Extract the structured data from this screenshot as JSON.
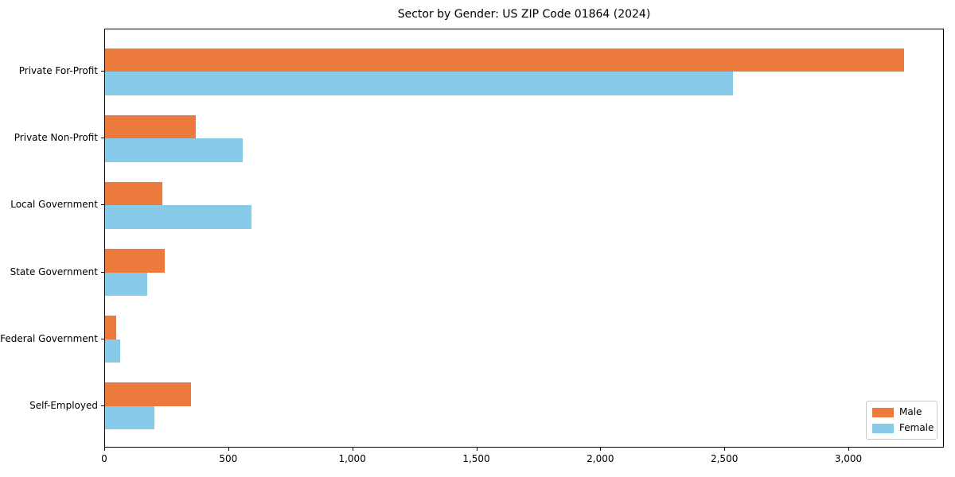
{
  "chart_data": {
    "type": "bar",
    "orientation": "horizontal",
    "title": "Sector by Gender: US ZIP Code 01864 (2024)",
    "categories": [
      "Private For-Profit",
      "Private Non-Profit",
      "Local Government",
      "State Government",
      "Federal Government",
      "Self-Employed"
    ],
    "series": [
      {
        "name": "Male",
        "color": "#EC7A3C",
        "values": [
          3220,
          365,
          230,
          240,
          45,
          345
        ]
      },
      {
        "name": "Female",
        "color": "#87CBE8",
        "values": [
          2530,
          555,
          590,
          170,
          60,
          200
        ]
      }
    ],
    "xlabel": "",
    "ylabel": "",
    "xlim": [
      0,
      3385
    ],
    "x_ticks": [
      0,
      500,
      1000,
      1500,
      2000,
      2500,
      3000
    ],
    "x_tick_labels": [
      "0",
      "500",
      "1,000",
      "1,500",
      "2,000",
      "2,500",
      "3,000"
    ],
    "legend": {
      "position": "lower right",
      "entries": [
        "Male",
        "Female"
      ]
    },
    "grid": false
  },
  "colors": {
    "background": "#ffffff",
    "spine": "#000000",
    "text": "#000000",
    "legend_border": "#c8c8c8"
  }
}
